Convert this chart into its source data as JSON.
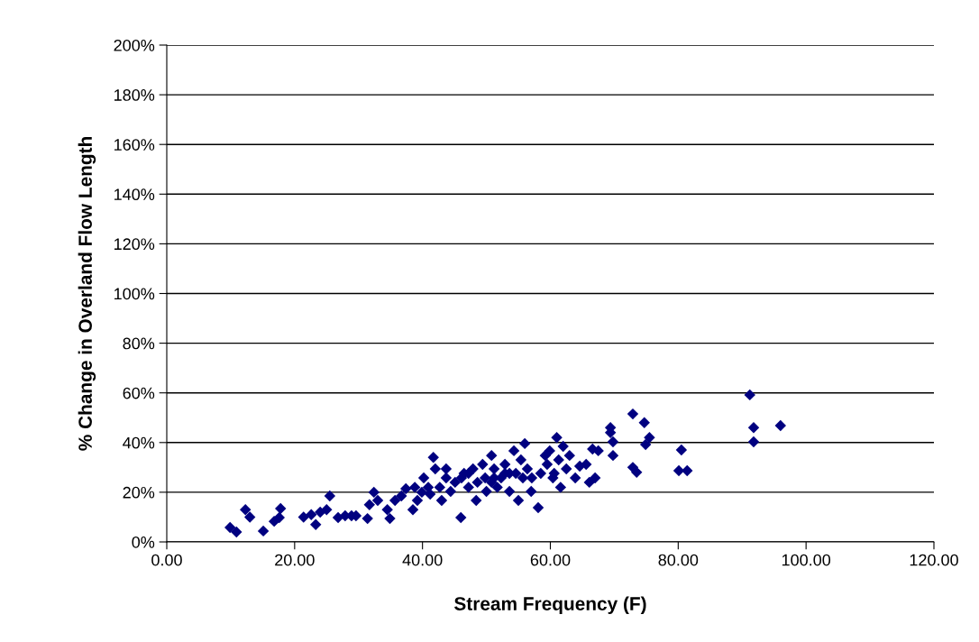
{
  "chart_data": {
    "type": "scatter",
    "xlabel": "Stream Frequency (F)",
    "ylabel": "% Change in Overland Flow Length",
    "xlim": [
      0,
      120
    ],
    "ylim": [
      0,
      200
    ],
    "xticks": [
      {
        "value": 0,
        "label": "0.00"
      },
      {
        "value": 20,
        "label": "20.00"
      },
      {
        "value": 40,
        "label": "40.00"
      },
      {
        "value": 60,
        "label": "60.00"
      },
      {
        "value": 80,
        "label": "80.00"
      },
      {
        "value": 100,
        "label": "100.00"
      },
      {
        "value": 120,
        "label": "120.00"
      }
    ],
    "yticks": [
      {
        "value": 0,
        "label": "0%"
      },
      {
        "value": 20,
        "label": "20%"
      },
      {
        "value": 40,
        "label": "40%"
      },
      {
        "value": 60,
        "label": "60%"
      },
      {
        "value": 80,
        "label": "80%"
      },
      {
        "value": 100,
        "label": "100%"
      },
      {
        "value": 120,
        "label": "120%"
      },
      {
        "value": 140,
        "label": "140%"
      },
      {
        "value": 160,
        "label": "160%"
      },
      {
        "value": 180,
        "label": "180%"
      },
      {
        "value": 200,
        "label": "200%"
      }
    ],
    "grid": "y",
    "marker": "diamond",
    "series": [
      {
        "color": "#000080",
        "x": [
          9.9,
          10.9,
          12.3,
          13,
          15.1,
          16.8,
          17.8,
          17.6,
          21.4,
          22.6,
          23.3,
          24,
          25,
          25.5,
          26.8,
          27.9,
          28.9,
          29.6,
          31.4,
          31.7,
          32.4,
          33,
          34.5,
          34.9,
          35.7,
          36.7,
          37.4,
          38.5,
          39.2,
          39.9,
          40.2,
          40.9,
          41.7,
          42,
          42.7,
          43,
          43.7,
          44.4,
          45.1,
          46,
          46.5,
          47.2,
          47.9,
          48.4,
          48.6,
          49.4,
          50,
          50.8,
          51.2,
          51.7,
          52.3,
          52.9,
          53.6,
          54.3,
          54.6,
          55,
          55.4,
          56,
          56.4,
          57,
          58.1,
          58.5,
          59.5,
          59.9,
          60.4,
          61,
          61.3,
          61.6,
          62.5,
          63,
          63.9,
          64.6,
          65.6,
          66.1,
          66.6,
          67,
          67.5,
          69.4,
          69.4,
          69.8,
          69.8,
          72.9,
          72.9,
          73.5,
          74.7,
          74.9,
          75.5,
          80.5,
          80.1,
          81.4,
          91.2,
          91.8,
          91.8,
          96,
          49.8,
          51.2,
          52.9,
          57.1,
          59.2,
          62,
          43.7,
          38.8,
          41.2,
          46.1,
          47.2,
          50.8,
          53.6,
          55.7,
          60.6
        ],
        "values": [
          5.8,
          4,
          13,
          10,
          4.4,
          8.3,
          13.4,
          9.8,
          10,
          11,
          7,
          12,
          13,
          18.5,
          9.8,
          10.5,
          10.5,
          10.5,
          9.4,
          15,
          20,
          16.7,
          13,
          9.4,
          16.7,
          18.5,
          21.4,
          13,
          16.7,
          20,
          25.8,
          22,
          34,
          29.4,
          22,
          16.7,
          29.4,
          20.3,
          24,
          9.8,
          27.6,
          22,
          29.4,
          16.7,
          24,
          31.2,
          20.3,
          34.8,
          29.4,
          22,
          25.8,
          31.2,
          20.3,
          36.7,
          27.6,
          16.7,
          33,
          39.6,
          29.4,
          20.3,
          13.8,
          27.6,
          31.2,
          36.7,
          25.8,
          42,
          33,
          22,
          29.4,
          34.8,
          25.8,
          30.5,
          31.2,
          24,
          37.4,
          25.8,
          36.7,
          46,
          44,
          40.3,
          34.8,
          51.5,
          30,
          28,
          48,
          39.2,
          42,
          37,
          28.7,
          28.7,
          59.2,
          46,
          40.3,
          46.8,
          25.8,
          25.8,
          27.6,
          25.8,
          34.8,
          38.5,
          25.8,
          22,
          19.2,
          25.8,
          27.6,
          24,
          27.6,
          25.8,
          27.6
        ]
      }
    ]
  }
}
